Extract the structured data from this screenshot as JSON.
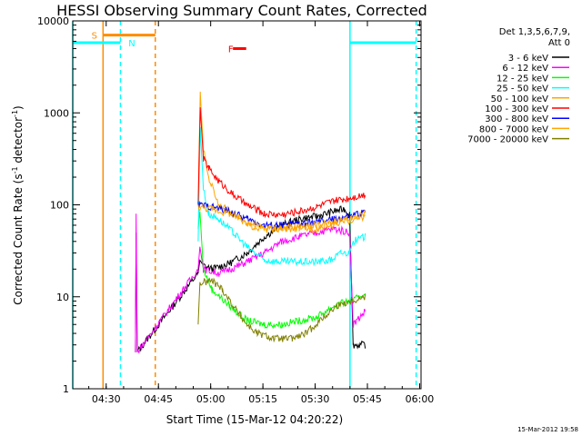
{
  "chart_data": {
    "type": "line",
    "title": "HESSI Observing Summary Count Rates, Corrected",
    "xlabel": "Start Time (15-Mar-12 04:20:22)",
    "ylabel_main": "Corrected Count Rate (s",
    "ylabel_sup1": "-1",
    "ylabel_mid": " detector",
    "ylabel_sup2": "-1",
    "ylabel_end": ")",
    "yscale": "log",
    "ylim": [
      1,
      10000
    ],
    "xlim_minutes": [
      0,
      100
    ],
    "xticks": [
      {
        "label": "04:30",
        "min": 9.6
      },
      {
        "label": "04:45",
        "min": 24.6
      },
      {
        "label": "05:00",
        "min": 39.6
      },
      {
        "label": "05:15",
        "min": 54.6
      },
      {
        "label": "05:30",
        "min": 69.6
      },
      {
        "label": "05:45",
        "min": 84.6
      },
      {
        "label": "06:00",
        "min": 99.6
      }
    ],
    "yticks": [
      {
        "label": "1",
        "value": 1
      },
      {
        "label": "10",
        "value": 10
      },
      {
        "label": "100",
        "value": 100
      },
      {
        "label": "1000",
        "value": 1000
      },
      {
        "label": "10000",
        "value": 10000
      }
    ],
    "legend_header": [
      "Det 1,3,5,6,7,9,",
      "Att 0"
    ],
    "legend_position": "top-right, outside plot",
    "series": [
      {
        "name": "3 - 6 keV",
        "color": "#000000",
        "points": [
          [
            18,
            2.5
          ],
          [
            18.2,
            50
          ],
          [
            18.5,
            2.5
          ],
          [
            36,
            18
          ],
          [
            36.5,
            25
          ],
          [
            37.5,
            22
          ],
          [
            40,
            20
          ],
          [
            45,
            23
          ],
          [
            50,
            30
          ],
          [
            55,
            45
          ],
          [
            60,
            60
          ],
          [
            65,
            70
          ],
          [
            70,
            75
          ],
          [
            75,
            85
          ],
          [
            78,
            90
          ],
          [
            79.5,
            80
          ],
          [
            80.5,
            3
          ],
          [
            84,
            3
          ]
        ]
      },
      {
        "name": "6 - 12 keV",
        "color": "#ff00ff",
        "points": [
          [
            18,
            2.5
          ],
          [
            18.2,
            80
          ],
          [
            18.5,
            2.5
          ],
          [
            36,
            20
          ],
          [
            36.5,
            35
          ],
          [
            37.5,
            20
          ],
          [
            42,
            18
          ],
          [
            48,
            22
          ],
          [
            55,
            30
          ],
          [
            60,
            40
          ],
          [
            65,
            45
          ],
          [
            70,
            50
          ],
          [
            75,
            55
          ],
          [
            79.5,
            50
          ],
          [
            80.5,
            5
          ],
          [
            84,
            7
          ]
        ]
      },
      {
        "name": "12 - 25 keV",
        "color": "#00ff00",
        "points": [
          [
            36,
            55
          ],
          [
            36.5,
            85
          ],
          [
            37.5,
            20
          ],
          [
            40,
            12
          ],
          [
            45,
            8
          ],
          [
            50,
            5.5
          ],
          [
            55,
            5
          ],
          [
            60,
            5
          ],
          [
            65,
            5.5
          ],
          [
            70,
            6
          ],
          [
            75,
            8
          ],
          [
            79.5,
            9
          ],
          [
            80.5,
            9
          ],
          [
            84,
            11
          ]
        ]
      },
      {
        "name": "25 - 50 keV",
        "color": "#00ffff",
        "points": [
          [
            36,
            40
          ],
          [
            36.6,
            700
          ],
          [
            37.5,
            150
          ],
          [
            39,
            80
          ],
          [
            42,
            70
          ],
          [
            46,
            50
          ],
          [
            50,
            35
          ],
          [
            55,
            25
          ],
          [
            60,
            24
          ],
          [
            65,
            24
          ],
          [
            70,
            24
          ],
          [
            74,
            25
          ],
          [
            77,
            30
          ],
          [
            79.5,
            30
          ],
          [
            80.5,
            40
          ],
          [
            84,
            45
          ]
        ]
      },
      {
        "name": "50 - 100 keV",
        "color": "#ffa500",
        "points": [
          [
            36,
            100
          ],
          [
            36.6,
            1700
          ],
          [
            37.5,
            400
          ],
          [
            39,
            200
          ],
          [
            42,
            100
          ],
          [
            46,
            80
          ],
          [
            50,
            60
          ],
          [
            55,
            55
          ],
          [
            60,
            55
          ],
          [
            65,
            55
          ],
          [
            70,
            55
          ],
          [
            74,
            60
          ],
          [
            78,
            65
          ],
          [
            84,
            75
          ]
        ]
      },
      {
        "name": "100 - 300 keV",
        "color": "#ff0000",
        "points": [
          [
            36,
            100
          ],
          [
            36.6,
            1150
          ],
          [
            37.5,
            320
          ],
          [
            39,
            250
          ],
          [
            42,
            180
          ],
          [
            46,
            130
          ],
          [
            50,
            100
          ],
          [
            55,
            80
          ],
          [
            60,
            78
          ],
          [
            65,
            85
          ],
          [
            70,
            95
          ],
          [
            75,
            110
          ],
          [
            80,
            120
          ],
          [
            84,
            130
          ]
        ]
      },
      {
        "name": "300 - 800 keV",
        "color": "#0000ff",
        "points": [
          [
            36,
            100
          ],
          [
            40,
            95
          ],
          [
            45,
            85
          ],
          [
            50,
            70
          ],
          [
            55,
            60
          ],
          [
            60,
            60
          ],
          [
            65,
            62
          ],
          [
            70,
            65
          ],
          [
            75,
            70
          ],
          [
            80,
            75
          ],
          [
            84,
            85
          ]
        ]
      },
      {
        "name": "800 - 7000 keV",
        "color": "#ffa500",
        "points": [
          [
            36,
            95
          ],
          [
            40,
            90
          ],
          [
            45,
            80
          ],
          [
            50,
            65
          ],
          [
            55,
            55
          ],
          [
            60,
            55
          ],
          [
            65,
            58
          ],
          [
            70,
            60
          ],
          [
            75,
            65
          ],
          [
            80,
            70
          ],
          [
            84,
            80
          ]
        ]
      },
      {
        "name": "7000 - 20000 keV",
        "color": "#808000",
        "points": [
          [
            36,
            5
          ],
          [
            36.5,
            14
          ],
          [
            40,
            15
          ],
          [
            43,
            12
          ],
          [
            46,
            8
          ],
          [
            50,
            5
          ],
          [
            53,
            4
          ],
          [
            58,
            3.5
          ],
          [
            63,
            3.5
          ],
          [
            67,
            4
          ],
          [
            72,
            6
          ],
          [
            76,
            8
          ],
          [
            79.5,
            9
          ],
          [
            84,
            10
          ]
        ]
      }
    ],
    "attenuator_lines": [
      {
        "min": 8.7,
        "color": "#ff8c00",
        "style": "solid"
      },
      {
        "min": 23.7,
        "color": "#ff8c00",
        "style": "dashed"
      }
    ],
    "night_lines": [
      {
        "min": 0,
        "color": "#00ffff",
        "style": "solid"
      },
      {
        "min": 13.7,
        "color": "#00ffff",
        "style": "dashed"
      },
      {
        "min": 79.6,
        "color": "#00ffff",
        "style": "solid"
      },
      {
        "min": 98.6,
        "color": "#00ffff",
        "style": "dashed"
      }
    ],
    "top_flags": [
      {
        "label": "S",
        "color": "#ff8c00",
        "label_min": 5.4,
        "bar_from": 8.7,
        "bar_to": 23.7,
        "value": 7000
      },
      {
        "label": "N",
        "color": "#00ffff",
        "label_min": 16.0,
        "bar_from": 0,
        "bar_to": 13.7,
        "value": 5800
      },
      {
        "label": "F",
        "color": "#ff0000",
        "label_min": 44.6,
        "bar_from": 46.0,
        "bar_to": 49.8,
        "value": 5000
      },
      {
        "label": "",
        "color": "#00ffff",
        "label_min": 0,
        "bar_from": 79.6,
        "bar_to": 98.6,
        "value": 5800
      }
    ],
    "timestamp": "15-Mar-2012 19:58"
  }
}
